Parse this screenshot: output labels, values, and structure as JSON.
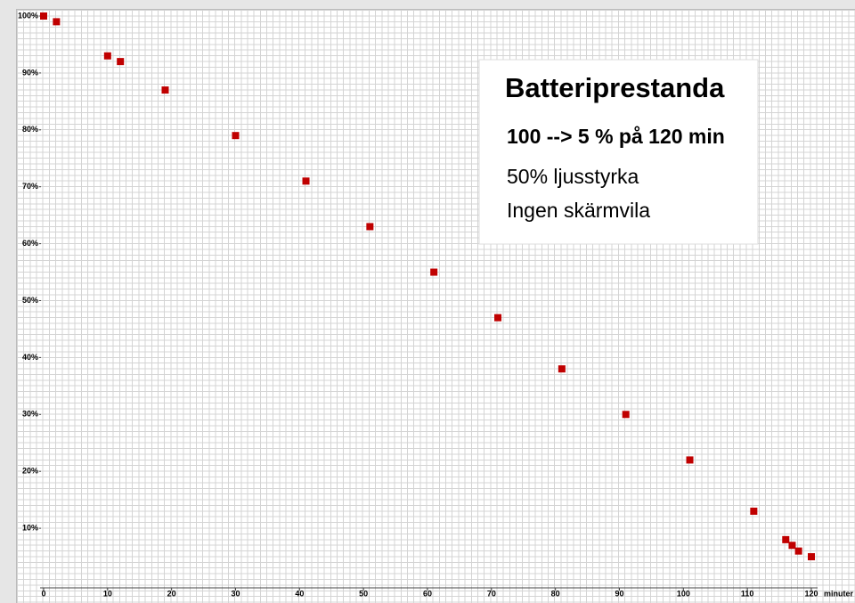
{
  "chart_data": {
    "type": "scatter",
    "x": [
      0,
      2,
      10,
      12,
      19,
      30,
      41,
      51,
      61,
      71,
      81,
      91,
      101,
      111,
      116,
      117,
      118,
      120
    ],
    "values": [
      100,
      99,
      93,
      92,
      87,
      79,
      71,
      63,
      55,
      47,
      38,
      30,
      22,
      13,
      8,
      7,
      6,
      5
    ],
    "color": "#c00000",
    "xlim": [
      0,
      120
    ],
    "ylim": [
      0,
      100
    ],
    "xticks": [
      0,
      10,
      20,
      30,
      40,
      50,
      60,
      70,
      80,
      90,
      100,
      110,
      120
    ],
    "yticks": [
      {
        "value": 100,
        "label": "100%"
      },
      {
        "value": 90,
        "label": "90%"
      },
      {
        "value": 80,
        "label": "80%"
      },
      {
        "value": 70,
        "label": "70%"
      },
      {
        "value": 60,
        "label": "60%"
      },
      {
        "value": 50,
        "label": "50%"
      },
      {
        "value": 40,
        "label": "40%"
      },
      {
        "value": 30,
        "label": "30%"
      },
      {
        "value": 20,
        "label": "20%"
      },
      {
        "value": 10,
        "label": "10%"
      }
    ],
    "xlabel": "minuter",
    "annotation": {
      "title": "Batteriprestanda",
      "lines": [
        "100 --> 5 % på 120 min",
        "50% ljusstyrka",
        "Ingen skärmvila"
      ]
    }
  }
}
